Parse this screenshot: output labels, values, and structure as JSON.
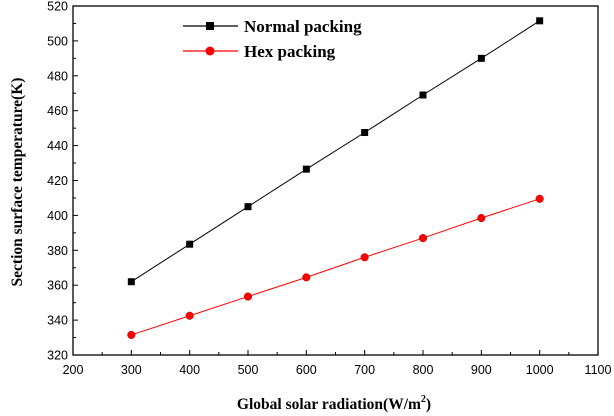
{
  "chart_data": {
    "type": "line",
    "title": "",
    "xlabel": "Global solar radiation(W/m",
    "xlabel_sup": "2",
    "xlabel_suffix": ")",
    "ylabel": "Section surface temperature(K)",
    "xlim": [
      200,
      1100
    ],
    "ylim": [
      320,
      520
    ],
    "xticks": [
      "200",
      "300",
      "400",
      "500",
      "600",
      "700",
      "800",
      "900",
      "1000",
      "1100"
    ],
    "yticks": [
      "320",
      "340",
      "360",
      "380",
      "400",
      "420",
      "440",
      "460",
      "480",
      "500",
      "520"
    ],
    "x": [
      300,
      400,
      500,
      600,
      700,
      800,
      900,
      1000
    ],
    "grid": false,
    "legend_position": "top-left",
    "series": [
      {
        "name": "Normal packing",
        "color": "#000000",
        "marker": "square",
        "values": [
          362,
          383.5,
          405,
          426.5,
          447.5,
          469,
          490,
          511.5
        ]
      },
      {
        "name": "Hex packing",
        "color": "#ff0000",
        "marker": "circle",
        "values": [
          331.5,
          342.5,
          353.5,
          364.5,
          376,
          387,
          398.5,
          409.5
        ]
      }
    ]
  }
}
